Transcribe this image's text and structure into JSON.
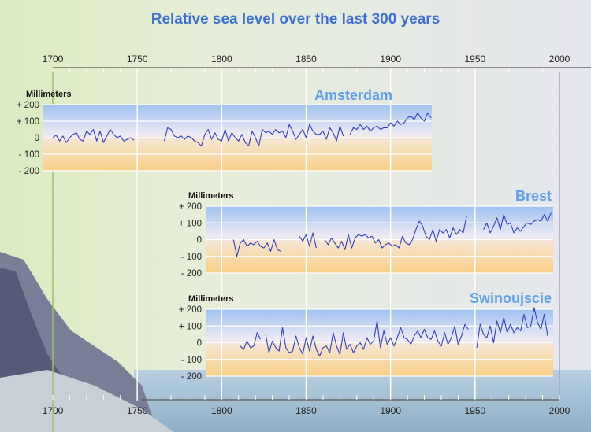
{
  "chart_data": {
    "type": "line",
    "title": "Relative sea level over the last 300 years",
    "xlim": [
      1700,
      2000
    ],
    "x_ticks": [
      "1700",
      "1750",
      "1800",
      "1850",
      "1900",
      "1950",
      "2000"
    ],
    "ylabel": "Millimeters",
    "ylim": [
      -200,
      200
    ],
    "y_ticks": [
      "+ 200",
      "+ 100",
      "0",
      "- 100",
      "- 200"
    ],
    "colors": {
      "line": "#2f3fc0",
      "title": "#3c70d4",
      "panel_label": "#5fa0ea"
    },
    "panels": [
      {
        "name": "Amsterdam",
        "xlim": [
          1700,
          1925
        ],
        "step": 2,
        "segments": [
          {
            "start": 1700,
            "values": [
              0,
              15,
              -20,
              10,
              -30,
              0,
              20,
              30,
              -10,
              -20,
              40,
              20,
              50,
              -20,
              40,
              -30,
              10,
              50,
              20,
              0,
              10,
              -20,
              -10,
              0,
              -15
            ]
          },
          {
            "start": 1766,
            "values": [
              -20,
              60,
              50,
              10,
              0,
              10,
              -10,
              10,
              0,
              -20,
              -30,
              -50,
              20,
              50,
              -10,
              30,
              -10,
              -20,
              50,
              -20,
              30,
              0,
              -20,
              20,
              -30,
              -50,
              40,
              0,
              -50,
              50,
              30,
              40,
              20,
              50,
              30,
              40,
              0,
              80,
              40,
              -10,
              20,
              50,
              0,
              80,
              40,
              20,
              20,
              40,
              -10,
              60,
              30,
              -20,
              70,
              10
            ]
          },
          {
            "start": 1876,
            "values": [
              20,
              60,
              50,
              80,
              50,
              70,
              40,
              60,
              70,
              50,
              60,
              60,
              90,
              70,
              100,
              80,
              90,
              120,
              130,
              110,
              150,
              120,
              100,
              150,
              120
            ]
          }
        ]
      },
      {
        "name": "Brest",
        "xlim": [
          1790,
          1995
        ],
        "step": 2,
        "segments": [
          {
            "start": 1807,
            "values": [
              0,
              -100,
              -20,
              0,
              -40,
              -20,
              -30,
              -10,
              -40,
              -50,
              -20,
              -70,
              0,
              -60,
              -70
            ]
          },
          {
            "start": 1846,
            "values": [
              20,
              -10,
              30,
              -40,
              40,
              -50
            ]
          },
          {
            "start": 1861,
            "values": [
              0,
              -30,
              10,
              -20,
              -50,
              -10,
              -60,
              30,
              -50,
              10,
              30,
              20,
              30,
              10,
              20,
              -20,
              0,
              -50,
              -30,
              -20,
              -40,
              -30,
              -50,
              20,
              -20,
              -30,
              0,
              60,
              110,
              80,
              20,
              0,
              60,
              -10,
              60,
              40,
              60,
              10,
              70,
              30,
              60,
              40,
              140
            ]
          },
          {
            "start": 1955,
            "values": [
              60,
              100,
              40,
              80,
              130,
              60,
              150,
              90,
              100,
              40,
              70,
              50,
              80,
              100,
              90,
              110,
              120,
              110,
              150,
              110,
              160
            ]
          }
        ]
      },
      {
        "name": "Swinoujscie",
        "xlim": [
          1790,
          1995
        ],
        "step": 2,
        "segments": [
          {
            "start": 1811,
            "values": [
              -20,
              -40,
              10,
              -30,
              -20,
              60,
              20
            ]
          },
          {
            "start": 1826,
            "values": [
              50,
              -60,
              10,
              -30,
              -50,
              90,
              -30,
              -60,
              -50,
              40,
              -30,
              -70,
              30,
              -50,
              40,
              -40,
              -80,
              -30,
              -20,
              -60,
              60,
              -20,
              -70,
              60,
              -40,
              -10,
              -60,
              -20,
              0,
              -40,
              30,
              -10,
              10,
              130,
              -30,
              70,
              -10,
              30,
              -20,
              30,
              90,
              30,
              20,
              -10,
              40,
              70,
              30,
              80,
              30,
              20,
              70,
              10,
              -20,
              60,
              -10,
              30,
              100,
              -10,
              40,
              110,
              80
            ]
          },
          {
            "start": 1951,
            "values": [
              -30,
              110,
              50,
              30,
              100,
              0,
              130,
              60,
              150,
              60,
              110,
              60,
              90,
              70,
              170,
              90,
              100,
              210,
              120,
              80,
              170,
              40
            ]
          }
        ]
      }
    ]
  }
}
